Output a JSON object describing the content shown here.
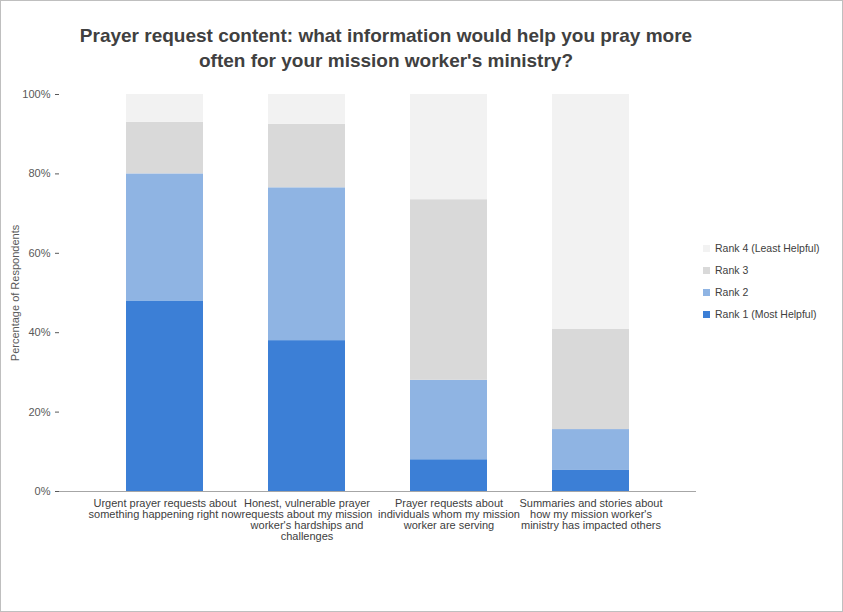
{
  "chart_data": {
    "type": "bar",
    "title": "Prayer request content: what information would help you pray more often for your mission worker's ministry?",
    "ylabel": "Percentage of Respondents",
    "categories": [
      "Urgent prayer requests about something happening right now",
      "Honest, vulnerable prayer requests about my mission worker's hardships and challenges",
      "Prayer requests about individuals whom my mission worker are serving",
      "Summaries and stories about how my mission worker's ministry has impacted others"
    ],
    "series": [
      {
        "name": "Rank 1 (Most Helpful)",
        "color": "#3c7fd6",
        "values": [
          48,
          38,
          8,
          5.3
        ]
      },
      {
        "name": "Rank 2",
        "color": "#8fb4e3",
        "values": [
          32,
          38.5,
          20,
          10.3
        ]
      },
      {
        "name": "Rank 3",
        "color": "#d9d9d9",
        "values": [
          13,
          16,
          45.5,
          25.2
        ]
      },
      {
        "name": "Rank 4 (Least Helpful)",
        "color": "#f2f2f2",
        "values": [
          7,
          7.5,
          26.5,
          59.2
        ]
      }
    ],
    "stacked": true,
    "ylim": [
      0,
      100
    ],
    "yticks": [
      {
        "value": 0,
        "label": "0%"
      },
      {
        "value": 20,
        "label": "20%"
      },
      {
        "value": 40,
        "label": "40%"
      },
      {
        "value": 60,
        "label": "60%"
      },
      {
        "value": 80,
        "label": "80%"
      },
      {
        "value": 100,
        "label": "100%"
      }
    ],
    "grid": false,
    "legend": "right"
  }
}
